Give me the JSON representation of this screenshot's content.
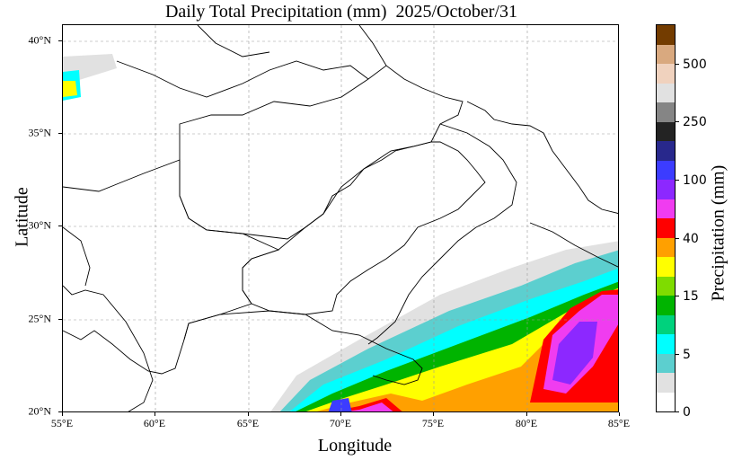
{
  "title": "Daily Total Precipitation (mm)  2025/October/31",
  "x_axis": {
    "label": "Longitude",
    "ticks": [
      "55°E",
      "60°E",
      "65°E",
      "70°E",
      "75°E",
      "80°E",
      "85°E"
    ],
    "range": [
      55,
      85
    ]
  },
  "y_axis": {
    "label": "Latitude",
    "ticks": [
      "40°N",
      "35°N",
      "30°N",
      "25°N",
      "20°N"
    ],
    "range": [
      20,
      41
    ]
  },
  "colorbar": {
    "label": "Precipitation (mm)",
    "tick_labels": [
      "0",
      "5",
      "15",
      "40",
      "100",
      "250",
      "500"
    ],
    "colors": [
      "#ffffff",
      "#e1e1e1",
      "#5ccfcf",
      "#00ffff",
      "#00d27d",
      "#00b400",
      "#7fdc00",
      "#ffff00",
      "#ffa000",
      "#ff0000",
      "#f03cf0",
      "#8c28ff",
      "#3c3cff",
      "#28288c",
      "#232323",
      "#858585",
      "#e1e1e1",
      "#f0d2be",
      "#d9a97f",
      "#733c00"
    ]
  },
  "map": {
    "grid": "dashed",
    "domain": "South Asia (Afghanistan, Pakistan, India, Arabian Sea)",
    "precip_colors": {
      "trace": "#e1e1e1",
      "light": "#5ccfcf",
      "cyan": "#00ffff",
      "green": "#00b400",
      "yellow": "#ffff00",
      "orange": "#ffa000",
      "red": "#ff0000",
      "magenta": "#f03cf0",
      "purple": "#8c28ff",
      "blue": "#3c3cff"
    }
  }
}
